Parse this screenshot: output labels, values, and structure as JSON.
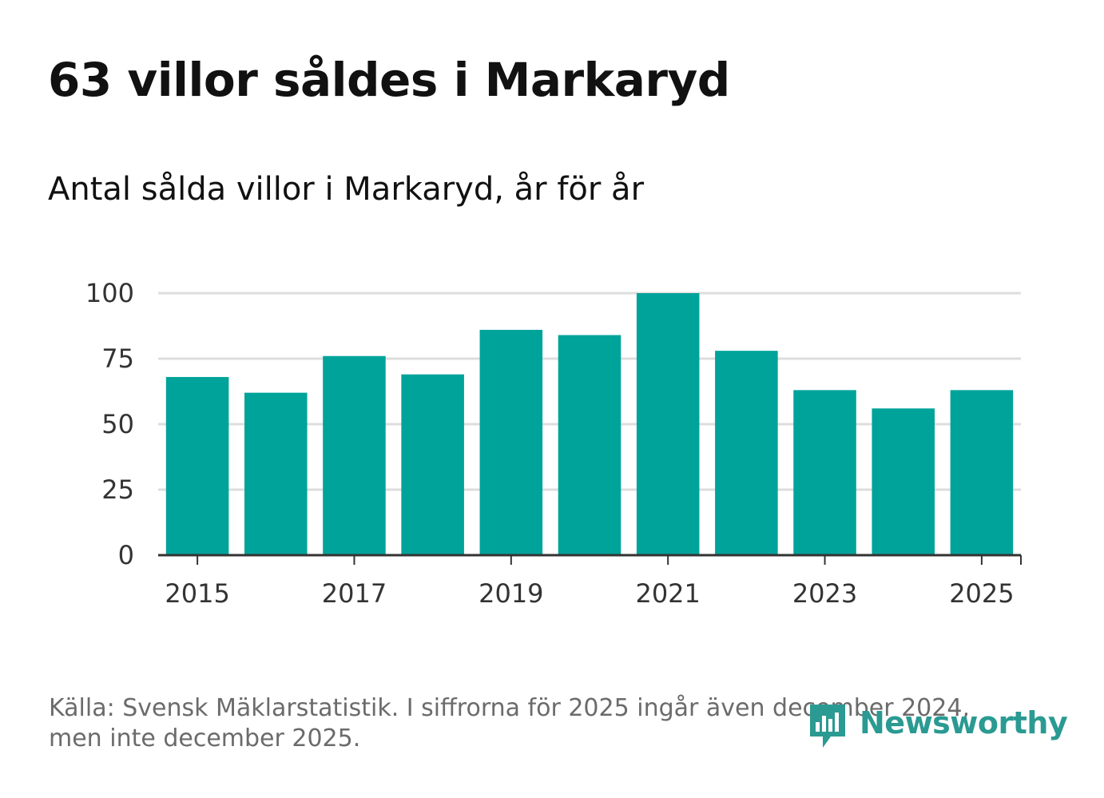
{
  "title": "63 villor såldes i Markaryd",
  "subtitle": "Antal sålda villor i Markaryd, år för år",
  "source_line1": "Källa: Svensk Mäklarstatistik. I siffrorna för 2025 ingår även december 2024,",
  "source_line2": "men inte december 2025.",
  "brand": "Newsworthy",
  "colors": {
    "bar": "#00a39a",
    "grid": "#dddddd",
    "axis": "#333333",
    "brand": "#2a9a92"
  },
  "chart_data": {
    "type": "bar",
    "title": "Antal sålda villor i Markaryd, år för år",
    "xlabel": "",
    "ylabel": "",
    "categories": [
      "2015",
      "2016",
      "2017",
      "2018",
      "2019",
      "2020",
      "2021",
      "2022",
      "2023",
      "2024",
      "2025"
    ],
    "values": [
      68,
      62,
      76,
      69,
      86,
      84,
      100,
      78,
      63,
      56,
      63
    ],
    "ylim": [
      0,
      100
    ],
    "yticks": [
      0,
      25,
      50,
      75,
      100
    ],
    "xticks": [
      "2015",
      "2017",
      "2019",
      "2021",
      "2023",
      "2025"
    ],
    "grid": true
  }
}
